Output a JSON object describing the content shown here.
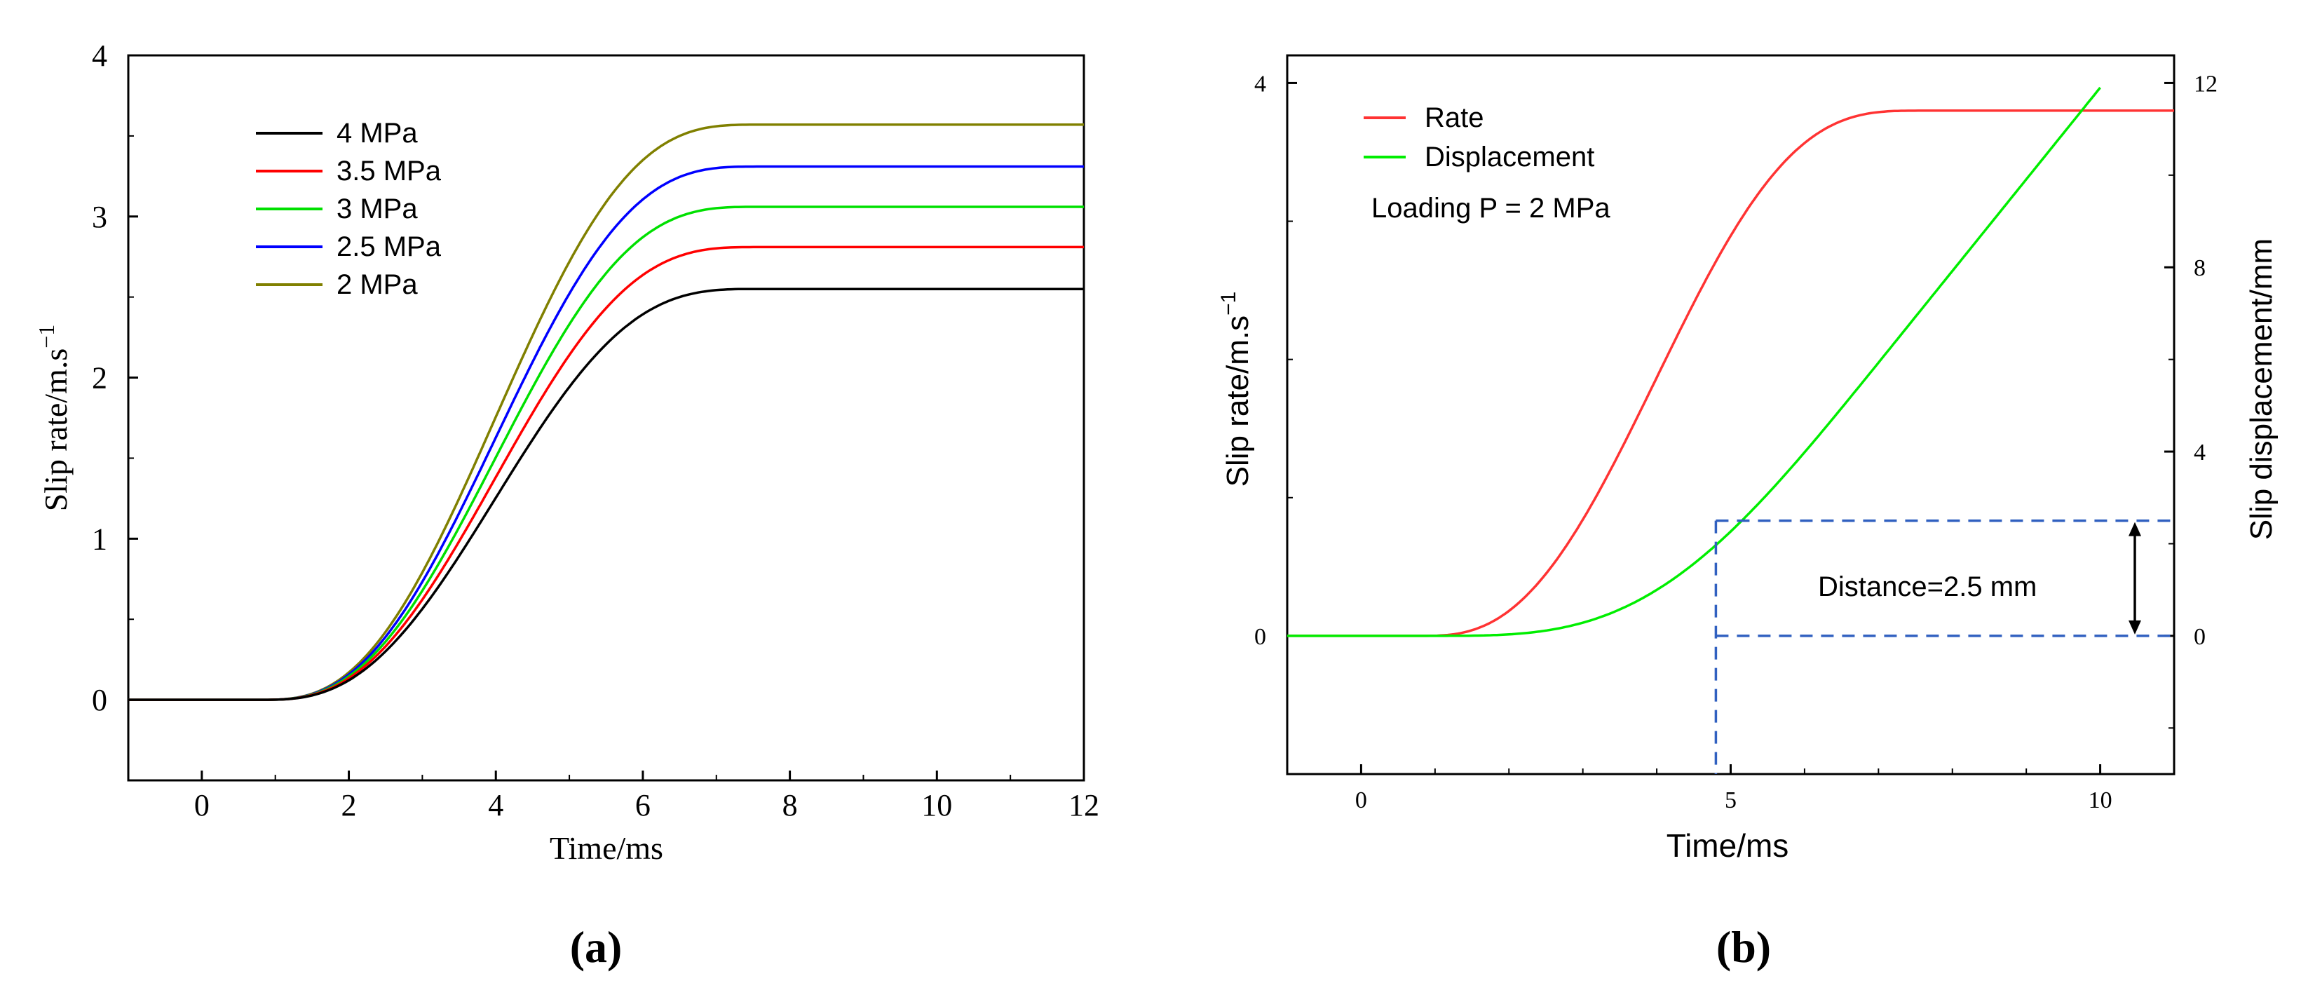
{
  "chart_data": [
    {
      "panel_label": "(a)",
      "type": "line",
      "xlabel": "Time/ms",
      "ylabel": "Slip rate/m.s",
      "ylabel_exp": "−1",
      "xlim": [
        -1,
        12
      ],
      "ylim": [
        -0.5,
        4
      ],
      "xticks": [
        0,
        2,
        4,
        6,
        8,
        10,
        12
      ],
      "yticks": [
        0,
        1,
        2,
        3,
        4
      ],
      "legend_position": "top-left",
      "series": [
        {
          "name": "4 MPa",
          "color": "#000000",
          "plateau": 2.55,
          "onset": 0.8,
          "steep": 1.0,
          "mid": 3.5
        },
        {
          "name": "3.5 MPa",
          "color": "#ff0000",
          "plateau": 2.81,
          "onset": 0.8,
          "steep": 1.05,
          "mid": 3.4
        },
        {
          "name": "3 MPa",
          "color": "#00e000",
          "plateau": 3.06,
          "onset": 0.8,
          "steep": 1.08,
          "mid": 3.35
        },
        {
          "name": "2.5 MPa",
          "color": "#0000ff",
          "plateau": 3.31,
          "onset": 0.8,
          "steep": 1.1,
          "mid": 3.3
        },
        {
          "name": "2 MPa",
          "color": "#808000",
          "plateau": 3.57,
          "onset": 0.8,
          "steep": 1.12,
          "mid": 3.25
        }
      ]
    },
    {
      "panel_label": "(b)",
      "type": "line",
      "xlabel": "Time/ms",
      "ylabel_left": "Slip rate/m.s",
      "ylabel_left_exp": "−1",
      "ylabel_right": "Slip displacement/mm",
      "xlim": [
        -1,
        11
      ],
      "ylim_left": [
        -1,
        4.2
      ],
      "ylim_right": [
        -3,
        12.6
      ],
      "xticks": [
        0,
        5,
        10
      ],
      "yticks_left": [
        0,
        4
      ],
      "yticks_right": [
        0,
        4,
        8,
        12
      ],
      "legend_position": "top-left",
      "annotation": "Loading P = 2 MPa",
      "distance_label": "Distance=2.5 mm",
      "distance_mm": 2.5,
      "marker_time": 4.8,
      "series": [
        {
          "name": "Rate",
          "color": "#ff3333",
          "axis": "left",
          "plateau": 3.8
        },
        {
          "name": "Displacement",
          "color": "#00ee00",
          "axis": "right",
          "end_time": 10.0,
          "end_value": 11.9
        }
      ]
    }
  ]
}
